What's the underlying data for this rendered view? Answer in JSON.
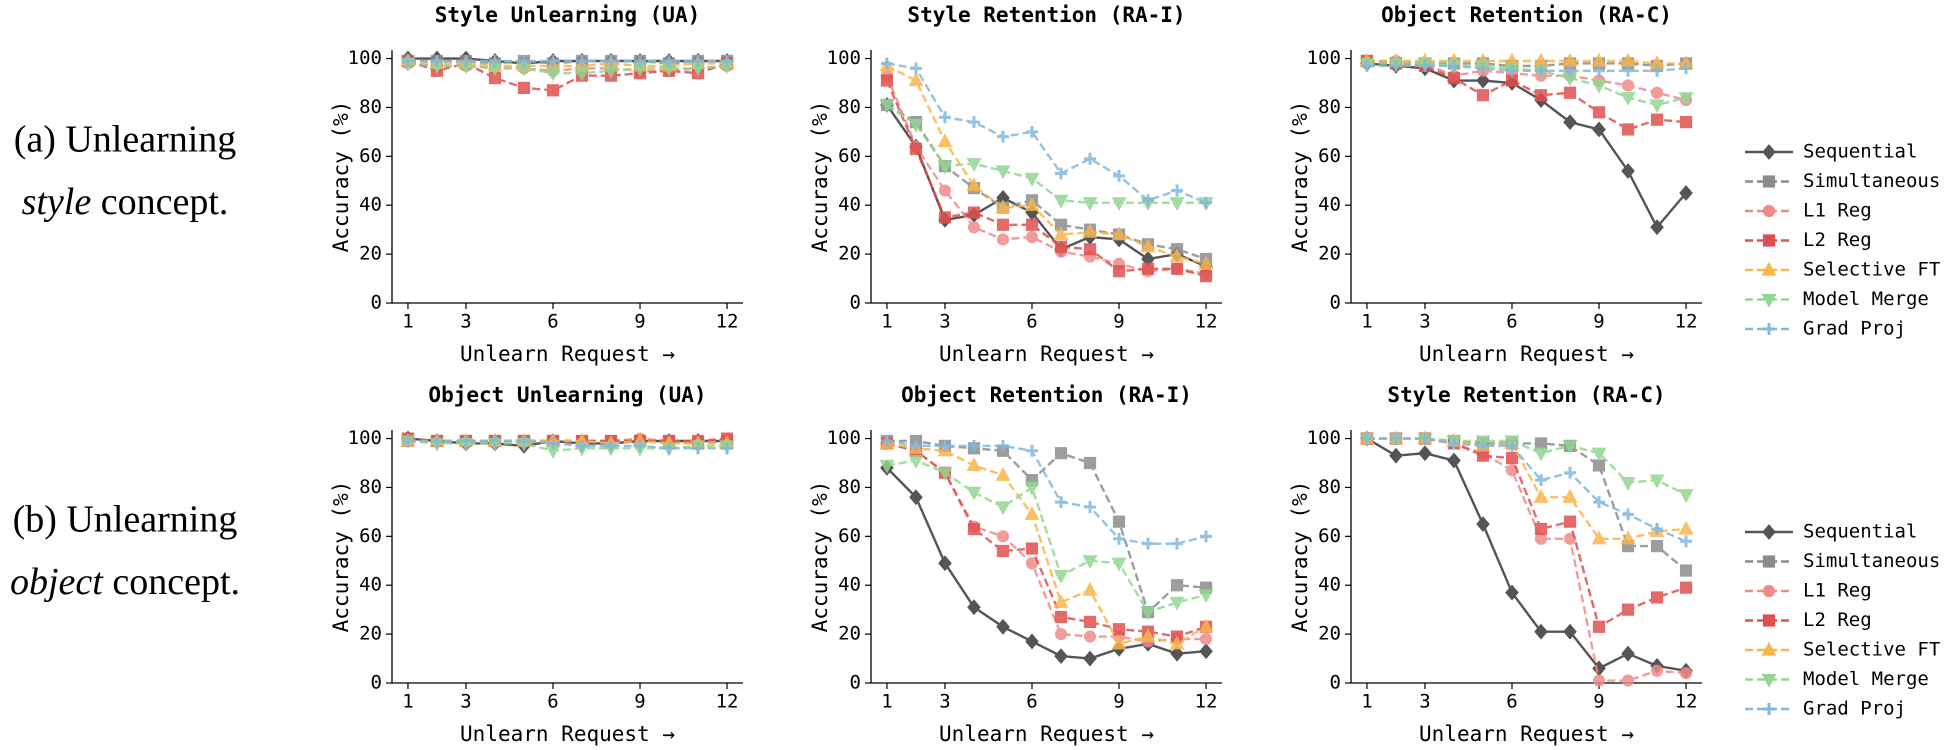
{
  "row_labels": [
    {
      "lead": "(a) Unlearning",
      "emph": "style",
      "tail": "concept."
    },
    {
      "lead": "(b) Unlearning",
      "emph": "object",
      "tail": "concept."
    }
  ],
  "chart_data": [
    {
      "type": "line",
      "title": "Style Unlearning (UA)",
      "xlabel": "Unlearn Request →",
      "ylabel": "Accuracy (%)",
      "xlim": [
        0.45,
        12.55
      ],
      "ylim": [
        0,
        103.5
      ],
      "xticks": [
        1,
        3,
        6,
        9,
        12
      ],
      "yticks": [
        0,
        20,
        40,
        60,
        80,
        100
      ],
      "x": [
        1,
        2,
        3,
        4,
        5,
        6,
        7,
        8,
        9,
        10,
        11,
        12
      ],
      "series": [
        {
          "name": "Sequential",
          "color": "#555555",
          "marker": "diamond",
          "linestyle": "solid",
          "values": [
            100,
            100,
            100,
            99,
            98,
            99,
            99,
            99,
            99,
            99,
            99,
            99
          ]
        },
        {
          "name": "Simultaneous",
          "color": "#8c8c8c",
          "marker": "square",
          "linestyle": "dashed",
          "values": [
            99,
            99,
            99,
            98,
            99,
            98,
            99,
            99,
            99,
            98,
            99,
            99
          ]
        },
        {
          "name": "L1 Reg",
          "color": "#f08a8a",
          "marker": "circle",
          "linestyle": "dashed",
          "values": [
            98,
            97,
            97,
            96,
            96,
            95,
            96,
            96,
            95,
            95,
            96,
            97
          ]
        },
        {
          "name": "L2 Reg",
          "color": "#e05050",
          "marker": "square",
          "linestyle": "dashed",
          "values": [
            99,
            95,
            98,
            92,
            88,
            87,
            93,
            93,
            94,
            95,
            94,
            98
          ]
        },
        {
          "name": "Selective FT",
          "color": "#f8b64c",
          "marker": "triangle-up",
          "linestyle": "dashed",
          "values": [
            99,
            98,
            98,
            97,
            97,
            97,
            97,
            98,
            97,
            97,
            98,
            98
          ]
        },
        {
          "name": "Model Merge",
          "color": "#92d692",
          "marker": "triangle-down",
          "linestyle": "dashed",
          "values": [
            98,
            97,
            97,
            96,
            96,
            94,
            94,
            95,
            96,
            96,
            96,
            97
          ]
        },
        {
          "name": "Grad Proj",
          "color": "#82b8de",
          "marker": "plus",
          "linestyle": "dashed",
          "values": [
            99,
            99,
            99,
            99,
            99,
            99,
            99,
            99,
            99,
            99,
            99,
            99
          ]
        }
      ]
    },
    {
      "type": "line",
      "title": "Style Retention (RA-I)",
      "xlabel": "Unlearn Request →",
      "ylabel": "Accuracy (%)",
      "xlim": [
        0.45,
        12.55
      ],
      "ylim": [
        0,
        103.5
      ],
      "xticks": [
        1,
        3,
        6,
        9,
        12
      ],
      "yticks": [
        0,
        20,
        40,
        60,
        80,
        100
      ],
      "x": [
        1,
        2,
        3,
        4,
        5,
        6,
        7,
        8,
        9,
        10,
        11,
        12
      ],
      "series": [
        {
          "name": "Sequential",
          "color": "#555555",
          "marker": "diamond",
          "linestyle": "solid",
          "values": [
            81,
            64,
            34,
            36,
            43,
            37,
            22,
            27,
            26,
            18,
            20,
            15
          ]
        },
        {
          "name": "Simultaneous",
          "color": "#8c8c8c",
          "marker": "square",
          "linestyle": "dashed",
          "values": [
            81,
            74,
            56,
            47,
            39,
            42,
            32,
            30,
            28,
            24,
            22,
            18
          ]
        },
        {
          "name": "L1 Reg",
          "color": "#f08a8a",
          "marker": "circle",
          "linestyle": "dashed",
          "values": [
            93,
            64,
            46,
            31,
            26,
            27,
            21,
            19,
            16,
            13,
            14,
            12
          ]
        },
        {
          "name": "L2 Reg",
          "color": "#e05050",
          "marker": "square",
          "linestyle": "dashed",
          "values": [
            91,
            63,
            35,
            37,
            32,
            32,
            23,
            22,
            13,
            14,
            14,
            11
          ]
        },
        {
          "name": "Selective FT",
          "color": "#f8b64c",
          "marker": "triangle-up",
          "linestyle": "dashed",
          "values": [
            97,
            91,
            66,
            48,
            39,
            40,
            28,
            29,
            28,
            23,
            19,
            16
          ]
        },
        {
          "name": "Model Merge",
          "color": "#92d692",
          "marker": "triangle-down",
          "linestyle": "dashed",
          "values": [
            81,
            73,
            56,
            57,
            54,
            51,
            42,
            41,
            41,
            41,
            41,
            41
          ]
        },
        {
          "name": "Grad Proj",
          "color": "#82b8de",
          "marker": "plus",
          "linestyle": "dashed",
          "values": [
            98,
            96,
            76,
            74,
            68,
            70,
            53,
            59,
            52,
            42,
            46,
            41
          ]
        }
      ]
    },
    {
      "type": "line",
      "title": "Object Retention (RA-C)",
      "xlabel": "Unlearn Request →",
      "ylabel": "Accuracy (%)",
      "xlim": [
        0.45,
        12.55
      ],
      "ylim": [
        0,
        103.5
      ],
      "xticks": [
        1,
        3,
        6,
        9,
        12
      ],
      "yticks": [
        0,
        20,
        40,
        60,
        80,
        100
      ],
      "legend": "right",
      "x": [
        1,
        2,
        3,
        4,
        5,
        6,
        7,
        8,
        9,
        10,
        11,
        12
      ],
      "series": [
        {
          "name": "Sequential",
          "color": "#555555",
          "marker": "diamond",
          "linestyle": "solid",
          "values": [
            98,
            97,
            96,
            91,
            91,
            90,
            83,
            74,
            71,
            54,
            31,
            45
          ]
        },
        {
          "name": "Simultaneous",
          "color": "#8c8c8c",
          "marker": "square",
          "linestyle": "dashed",
          "values": [
            99,
            98,
            98,
            98,
            98,
            97,
            97,
            98,
            98,
            98,
            97,
            98
          ]
        },
        {
          "name": "L1 Reg",
          "color": "#f08a8a",
          "marker": "circle",
          "linestyle": "dashed",
          "values": [
            99,
            99,
            98,
            93,
            95,
            94,
            93,
            93,
            91,
            89,
            86,
            83
          ]
        },
        {
          "name": "L2 Reg",
          "color": "#e05050",
          "marker": "square",
          "linestyle": "dashed",
          "values": [
            99,
            98,
            97,
            92,
            85,
            91,
            85,
            86,
            78,
            71,
            75,
            74
          ]
        },
        {
          "name": "Selective FT",
          "color": "#f8b64c",
          "marker": "triangle-up",
          "linestyle": "dashed",
          "values": [
            99,
            99,
            99,
            99,
            99,
            99,
            99,
            99,
            99,
            99,
            98,
            98
          ]
        },
        {
          "name": "Model Merge",
          "color": "#92d692",
          "marker": "triangle-down",
          "linestyle": "dashed",
          "values": [
            98,
            98,
            98,
            97,
            97,
            96,
            95,
            92,
            89,
            84,
            81,
            84
          ]
        },
        {
          "name": "Grad Proj",
          "color": "#82b8de",
          "marker": "plus",
          "linestyle": "dashed",
          "values": [
            97,
            97,
            97,
            97,
            96,
            95,
            95,
            95,
            95,
            95,
            95,
            96
          ]
        }
      ]
    },
    {
      "type": "line",
      "title": "Object Unlearning (UA)",
      "xlabel": "Unlearn Request →",
      "ylabel": "Accuracy (%)",
      "xlim": [
        0.45,
        12.55
      ],
      "ylim": [
        0,
        103.5
      ],
      "xticks": [
        1,
        3,
        6,
        9,
        12
      ],
      "yticks": [
        0,
        20,
        40,
        60,
        80,
        100
      ],
      "x": [
        1,
        2,
        3,
        4,
        5,
        6,
        7,
        8,
        9,
        10,
        11,
        12
      ],
      "series": [
        {
          "name": "Sequential",
          "color": "#555555",
          "marker": "diamond",
          "linestyle": "solid",
          "values": [
            100,
            99,
            98,
            98,
            97,
            99,
            98,
            98,
            99,
            99,
            99,
            99
          ]
        },
        {
          "name": "Simultaneous",
          "color": "#8c8c8c",
          "marker": "square",
          "linestyle": "dashed",
          "values": [
            99,
            99,
            99,
            99,
            99,
            99,
            99,
            99,
            99,
            99,
            98,
            99
          ]
        },
        {
          "name": "L1 Reg",
          "color": "#f08a8a",
          "marker": "circle",
          "linestyle": "dashed",
          "values": [
            99,
            99,
            99,
            99,
            99,
            99,
            99,
            99,
            100,
            99,
            99,
            99
          ]
        },
        {
          "name": "L2 Reg",
          "color": "#e05050",
          "marker": "square",
          "linestyle": "dashed",
          "values": [
            100,
            99,
            99,
            99,
            99,
            99,
            99,
            99,
            99,
            99,
            99,
            100
          ]
        },
        {
          "name": "Selective FT",
          "color": "#f8b64c",
          "marker": "triangle-up",
          "linestyle": "dashed",
          "values": [
            99,
            99,
            99,
            99,
            99,
            99,
            99,
            98,
            99,
            98,
            98,
            98
          ]
        },
        {
          "name": "Model Merge",
          "color": "#92d692",
          "marker": "triangle-down",
          "linestyle": "dashed",
          "values": [
            99,
            98,
            98,
            98,
            98,
            95,
            96,
            96,
            96,
            96,
            97,
            97
          ]
        },
        {
          "name": "Grad Proj",
          "color": "#82b8de",
          "marker": "plus",
          "linestyle": "dashed",
          "values": [
            99,
            99,
            99,
            99,
            99,
            98,
            97,
            97,
            97,
            96,
            96,
            96
          ]
        }
      ]
    },
    {
      "type": "line",
      "title": "Object Retention (RA-I)",
      "xlabel": "Unlearn Request →",
      "ylabel": "Accuracy (%)",
      "xlim": [
        0.45,
        12.55
      ],
      "ylim": [
        0,
        103.5
      ],
      "xticks": [
        1,
        3,
        6,
        9,
        12
      ],
      "yticks": [
        0,
        20,
        40,
        60,
        80,
        100
      ],
      "x": [
        1,
        2,
        3,
        4,
        5,
        6,
        7,
        8,
        9,
        10,
        11,
        12
      ],
      "series": [
        {
          "name": "Sequential",
          "color": "#555555",
          "marker": "diamond",
          "linestyle": "solid",
          "values": [
            88,
            76,
            49,
            31,
            23,
            17,
            11,
            10,
            14,
            16,
            12,
            13
          ]
        },
        {
          "name": "Simultaneous",
          "color": "#8c8c8c",
          "marker": "square",
          "linestyle": "dashed",
          "values": [
            99,
            99,
            97,
            96,
            95,
            83,
            94,
            90,
            66,
            29,
            40,
            39
          ]
        },
        {
          "name": "L1 Reg",
          "color": "#f08a8a",
          "marker": "circle",
          "linestyle": "dashed",
          "values": [
            98,
            95,
            86,
            64,
            60,
            49,
            20,
            19,
            19,
            17,
            18,
            18
          ]
        },
        {
          "name": "L2 Reg",
          "color": "#e05050",
          "marker": "square",
          "linestyle": "dashed",
          "values": [
            98,
            95,
            86,
            63,
            54,
            55,
            27,
            25,
            22,
            21,
            19,
            23
          ]
        },
        {
          "name": "Selective FT",
          "color": "#f8b64c",
          "marker": "triangle-up",
          "linestyle": "dashed",
          "values": [
            98,
            96,
            95,
            89,
            85,
            69,
            33,
            38,
            16,
            19,
            16,
            23
          ]
        },
        {
          "name": "Model Merge",
          "color": "#92d692",
          "marker": "triangle-down",
          "linestyle": "dashed",
          "values": [
            89,
            91,
            86,
            78,
            72,
            80,
            44,
            50,
            49,
            29,
            33,
            36
          ]
        },
        {
          "name": "Grad Proj",
          "color": "#82b8de",
          "marker": "plus",
          "linestyle": "dashed",
          "values": [
            99,
            97,
            97,
            97,
            97,
            95,
            74,
            72,
            59,
            57,
            57,
            60
          ]
        }
      ]
    },
    {
      "type": "line",
      "title": "Style Retention (RA-C)",
      "xlabel": "Unlearn Request →",
      "ylabel": "Accuracy (%)",
      "xlim": [
        0.45,
        12.55
      ],
      "ylim": [
        0,
        103.5
      ],
      "xticks": [
        1,
        3,
        6,
        9,
        12
      ],
      "yticks": [
        0,
        20,
        40,
        60,
        80,
        100
      ],
      "legend": "right",
      "x": [
        1,
        2,
        3,
        4,
        5,
        6,
        7,
        8,
        9,
        10,
        11,
        12
      ],
      "series": [
        {
          "name": "Sequential",
          "color": "#555555",
          "marker": "diamond",
          "linestyle": "solid",
          "values": [
            100,
            93,
            94,
            91,
            65,
            37,
            21,
            21,
            6,
            12,
            7,
            5
          ]
        },
        {
          "name": "Simultaneous",
          "color": "#8c8c8c",
          "marker": "square",
          "linestyle": "dashed",
          "values": [
            100,
            100,
            100,
            99,
            98,
            98,
            98,
            97,
            89,
            56,
            56,
            46
          ]
        },
        {
          "name": "L1 Reg",
          "color": "#f08a8a",
          "marker": "circle",
          "linestyle": "dashed",
          "values": [
            100,
            100,
            100,
            98,
            94,
            87,
            59,
            59,
            1,
            1,
            5,
            4
          ]
        },
        {
          "name": "L2 Reg",
          "color": "#e05050",
          "marker": "square",
          "linestyle": "dashed",
          "values": [
            100,
            100,
            100,
            98,
            93,
            92,
            63,
            66,
            23,
            30,
            35,
            39
          ]
        },
        {
          "name": "Selective FT",
          "color": "#f8b64c",
          "marker": "triangle-up",
          "linestyle": "dashed",
          "values": [
            100,
            100,
            100,
            99,
            97,
            98,
            76,
            76,
            59,
            59,
            62,
            63
          ]
        },
        {
          "name": "Model Merge",
          "color": "#92d692",
          "marker": "triangle-down",
          "linestyle": "dashed",
          "values": [
            100,
            100,
            100,
            99,
            99,
            99,
            94,
            97,
            94,
            82,
            83,
            77
          ]
        },
        {
          "name": "Grad Proj",
          "color": "#82b8de",
          "marker": "plus",
          "linestyle": "dashed",
          "values": [
            100,
            100,
            100,
            98,
            97,
            97,
            83,
            86,
            74,
            69,
            63,
            58
          ]
        }
      ]
    }
  ]
}
